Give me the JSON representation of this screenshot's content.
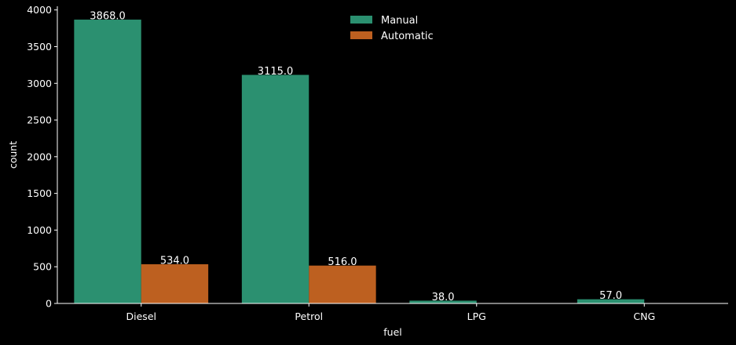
{
  "chart_data": {
    "type": "bar",
    "xlabel": "fuel",
    "ylabel": "count",
    "categories": [
      "Diesel",
      "Petrol",
      "LPG",
      "CNG"
    ],
    "series": [
      {
        "name": "Manual",
        "color": "#2b9070",
        "values": [
          3868.0,
          3115.0,
          38.0,
          57.0
        ],
        "labels": [
          "3868.0",
          "3115.0",
          "38.0",
          "57.0"
        ]
      },
      {
        "name": "Automatic",
        "color": "#bd6020",
        "values": [
          534.0,
          516.0,
          null,
          null
        ],
        "labels": [
          "534.0",
          "516.0",
          null,
          null
        ]
      }
    ],
    "yticks": [
      "0",
      "500",
      "1000",
      "1500",
      "2000",
      "2500",
      "3000",
      "3500",
      "4000"
    ],
    "ylim": [
      0,
      4050
    ],
    "grid": false,
    "legend_position": "top-center"
  }
}
